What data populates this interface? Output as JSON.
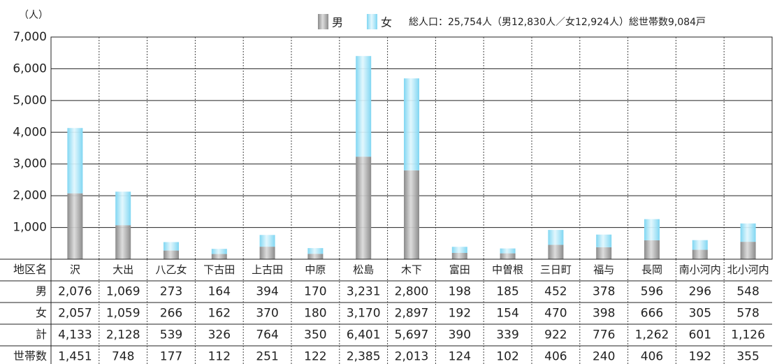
{
  "chart_data": {
    "type": "bar",
    "stacked": true,
    "y_unit": "（人）",
    "summary": "総人口：25,754人（男12,830人／女12,924人）総世帯数9,084戸",
    "category_header": "地区名",
    "categories": [
      "沢",
      "大出",
      "八乙女",
      "下古田",
      "上古田",
      "中原",
      "松島",
      "木下",
      "富田",
      "中曽根",
      "三日町",
      "福与",
      "長岡",
      "南小河内",
      "北小河内"
    ],
    "series": [
      {
        "name": "男",
        "color": "#8a8a8a",
        "values": [
          2076,
          1069,
          273,
          164,
          394,
          170,
          3231,
          2800,
          198,
          185,
          452,
          378,
          596,
          296,
          548
        ],
        "value_labels": [
          "2,076",
          "1,069",
          "273",
          "164",
          "394",
          "170",
          "3,231",
          "2,800",
          "198",
          "185",
          "452",
          "378",
          "596",
          "296",
          "548"
        ]
      },
      {
        "name": "女",
        "color": "#7fd6f2",
        "values": [
          2057,
          1059,
          266,
          162,
          370,
          180,
          3170,
          2897,
          192,
          154,
          470,
          398,
          666,
          305,
          578
        ],
        "value_labels": [
          "2,057",
          "1,059",
          "266",
          "162",
          "370",
          "180",
          "3,170",
          "2,897",
          "192",
          "154",
          "470",
          "398",
          "666",
          "305",
          "578"
        ]
      }
    ],
    "extra_rows": [
      {
        "label": "計",
        "values": [
          "4,133",
          "2,128",
          "539",
          "326",
          "764",
          "350",
          "6,401",
          "5,697",
          "390",
          "339",
          "922",
          "776",
          "1,262",
          "601",
          "1,126"
        ]
      },
      {
        "label": "世帯数",
        "values": [
          "1,451",
          "748",
          "177",
          "112",
          "251",
          "122",
          "2,385",
          "2,013",
          "124",
          "102",
          "406",
          "240",
          "406",
          "192",
          "355"
        ]
      }
    ],
    "ylim": [
      0,
      7000
    ],
    "yticks": [
      {
        "value": 1000,
        "label": "1,000"
      },
      {
        "value": 2000,
        "label": "2,000"
      },
      {
        "value": 3000,
        "label": "3,000"
      },
      {
        "value": 4000,
        "label": "4,000"
      },
      {
        "value": 5000,
        "label": "5,000"
      },
      {
        "value": 6000,
        "label": "6,000"
      },
      {
        "value": 7000,
        "label": "7,000"
      }
    ],
    "grid": true
  }
}
